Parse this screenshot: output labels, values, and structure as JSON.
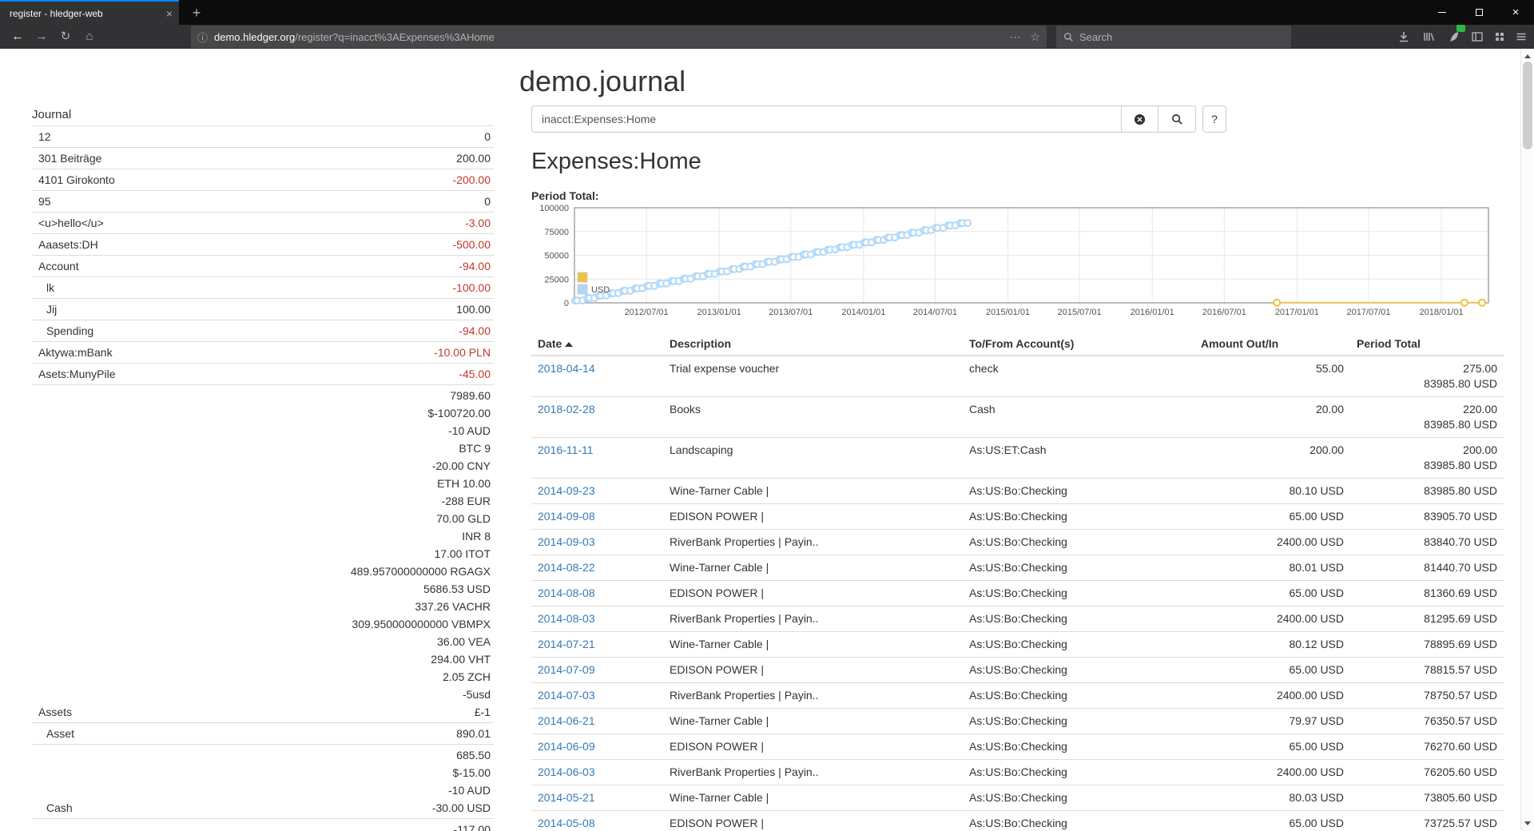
{
  "colors": {
    "negative": "#c0392b",
    "link": "#337ab7",
    "tab_accent": "#0a84ff",
    "chart_yellow": "#edc240",
    "chart_blue": "#afd8f8",
    "badge_green": "#2db845"
  },
  "browser": {
    "tab_title": "register - hledger-web",
    "url_host": "demo.hledger.org",
    "url_path": "/register?q=inacct%3AExpenses%3AHome",
    "search_placeholder": "Search"
  },
  "page": {
    "title": "demo.journal",
    "sidebar": {
      "heading": "Journal",
      "rows": [
        {
          "name": "12",
          "indent": 1,
          "red": false,
          "amounts": [
            "0"
          ]
        },
        {
          "name": "301 Beiträge",
          "indent": 1,
          "red": false,
          "amounts": [
            "200.00"
          ]
        },
        {
          "name": "4101 Girokonto",
          "indent": 1,
          "red": true,
          "amounts": [
            "-200.00"
          ]
        },
        {
          "name": "95",
          "indent": 1,
          "red": false,
          "amounts": [
            "0"
          ]
        },
        {
          "name": "<u>hello</u>",
          "indent": 1,
          "red": true,
          "amounts": [
            "-3.00"
          ]
        },
        {
          "name": "Aaasets:DH",
          "indent": 1,
          "red": true,
          "amounts": [
            "-500.00"
          ]
        },
        {
          "name": "Account",
          "indent": 1,
          "red": true,
          "amounts": [
            "-94.00"
          ]
        },
        {
          "name": "lk",
          "indent": 2,
          "red": true,
          "amounts": [
            "-100.00"
          ]
        },
        {
          "name": "Jij",
          "indent": 2,
          "red": false,
          "amounts": [
            "100.00"
          ]
        },
        {
          "name": "Spending",
          "indent": 2,
          "red": true,
          "amounts": [
            "-94.00"
          ]
        },
        {
          "name": "Aktywa:mBank",
          "indent": 1,
          "red": true,
          "amounts": [
            "-10.00 PLN"
          ]
        },
        {
          "name": "Asets:MunyPile",
          "indent": 1,
          "red": true,
          "amounts": [
            "-45.00"
          ]
        },
        {
          "name": "Assets",
          "indent": 1,
          "red": false,
          "amounts": [
            "7989.60",
            "$-100720.00",
            "-10 AUD",
            "BTC 9",
            "-20.00 CNY",
            "ETH 10.00",
            "-288 EUR",
            "70.00 GLD",
            "INR 8",
            "17.00 ITOT",
            "489.957000000000 RGAGX",
            "5686.53 USD",
            "337.26 VACHR",
            "309.950000000000 VBMPX",
            "36.00 VEA",
            "294.00 VHT",
            "2.05 ZCH",
            "-5usd",
            "£-1"
          ]
        },
        {
          "name": "Asset",
          "indent": 2,
          "red": false,
          "amounts": [
            "890.01"
          ]
        },
        {
          "name": "Cash",
          "indent": 2,
          "red": false,
          "amounts": [
            "685.50",
            "$-15.00",
            "-10 AUD",
            "-30.00 USD"
          ]
        },
        {
          "name": "",
          "indent": 2,
          "red": false,
          "amounts": [
            "-117.00"
          ]
        }
      ]
    },
    "search": {
      "query": "inacct:Expenses:Home",
      "help_label": "?"
    },
    "account_heading": "Expenses:Home",
    "period_total_label": "Period Total:",
    "register": {
      "columns": {
        "date": "Date",
        "description": "Description",
        "account": "To/From Account(s)",
        "amount": "Amount Out/In",
        "total": "Period Total"
      },
      "rows": [
        {
          "date": "2018-04-14",
          "description": "Trial expense voucher",
          "account": "check",
          "amount": "55.00",
          "totals": [
            "275.00",
            "83985.80 USD"
          ]
        },
        {
          "date": "2018-02-28",
          "description": "Books",
          "account": "Cash",
          "amount": "20.00",
          "totals": [
            "220.00",
            "83985.80 USD"
          ]
        },
        {
          "date": "2016-11-11",
          "description": "Landscaping",
          "account": "As:US:ET:Cash",
          "amount": "200.00",
          "totals": [
            "200.00",
            "83985.80 USD"
          ]
        },
        {
          "date": "2014-09-23",
          "description": "Wine-Tarner Cable |",
          "account": "As:US:Bo:Checking",
          "amount": "80.10 USD",
          "totals": [
            "83985.80 USD"
          ]
        },
        {
          "date": "2014-09-08",
          "description": "EDISON POWER |",
          "account": "As:US:Bo:Checking",
          "amount": "65.00 USD",
          "totals": [
            "83905.70 USD"
          ]
        },
        {
          "date": "2014-09-03",
          "description": "RiverBank Properties | Payin..",
          "account": "As:US:Bo:Checking",
          "amount": "2400.00 USD",
          "totals": [
            "83840.70 USD"
          ]
        },
        {
          "date": "2014-08-22",
          "description": "Wine-Tarner Cable |",
          "account": "As:US:Bo:Checking",
          "amount": "80.01 USD",
          "totals": [
            "81440.70 USD"
          ]
        },
        {
          "date": "2014-08-08",
          "description": "EDISON POWER |",
          "account": "As:US:Bo:Checking",
          "amount": "65.00 USD",
          "totals": [
            "81360.69 USD"
          ]
        },
        {
          "date": "2014-08-03",
          "description": "RiverBank Properties | Payin..",
          "account": "As:US:Bo:Checking",
          "amount": "2400.00 USD",
          "totals": [
            "81295.69 USD"
          ]
        },
        {
          "date": "2014-07-21",
          "description": "Wine-Tarner Cable |",
          "account": "As:US:Bo:Checking",
          "amount": "80.12 USD",
          "totals": [
            "78895.69 USD"
          ]
        },
        {
          "date": "2014-07-09",
          "description": "EDISON POWER |",
          "account": "As:US:Bo:Checking",
          "amount": "65.00 USD",
          "totals": [
            "78815.57 USD"
          ]
        },
        {
          "date": "2014-07-03",
          "description": "RiverBank Properties | Payin..",
          "account": "As:US:Bo:Checking",
          "amount": "2400.00 USD",
          "totals": [
            "78750.57 USD"
          ]
        },
        {
          "date": "2014-06-21",
          "description": "Wine-Tarner Cable |",
          "account": "As:US:Bo:Checking",
          "amount": "79.97 USD",
          "totals": [
            "76350.57 USD"
          ]
        },
        {
          "date": "2014-06-09",
          "description": "EDISON POWER |",
          "account": "As:US:Bo:Checking",
          "amount": "65.00 USD",
          "totals": [
            "76270.60 USD"
          ]
        },
        {
          "date": "2014-06-03",
          "description": "RiverBank Properties | Payin..",
          "account": "As:US:Bo:Checking",
          "amount": "2400.00 USD",
          "totals": [
            "76205.60 USD"
          ]
        },
        {
          "date": "2014-05-21",
          "description": "Wine-Tarner Cable |",
          "account": "As:US:Bo:Checking",
          "amount": "80.03 USD",
          "totals": [
            "73805.60 USD"
          ]
        },
        {
          "date": "2014-05-08",
          "description": "EDISON POWER |",
          "account": "As:US:Bo:Checking",
          "amount": "65.00 USD",
          "totals": [
            "73725.57 USD"
          ]
        }
      ]
    }
  },
  "chart_data": {
    "type": "line",
    "title": "Period Total:",
    "x_axis": "date (days since 2012-01-01)",
    "x_max_day": 2311,
    "y_max": 100000,
    "y_ticks": [
      0,
      25000,
      50000,
      75000,
      100000
    ],
    "x_ticks": [
      [
        182,
        "2012/07/01"
      ],
      [
        366,
        "2013/01/01"
      ],
      [
        547,
        "2013/07/01"
      ],
      [
        731,
        "2014/01/01"
      ],
      [
        912,
        "2014/07/01"
      ],
      [
        1096,
        "2015/01/01"
      ],
      [
        1277,
        "2015/07/01"
      ],
      [
        1461,
        "2016/01/01"
      ],
      [
        1643,
        "2016/07/01"
      ],
      [
        1827,
        "2017/01/01"
      ],
      [
        2008,
        "2017/07/01"
      ],
      [
        2192,
        "2018/01/01"
      ]
    ],
    "legend_position": "bottom-left",
    "grid": true,
    "series": [
      {
        "name": "",
        "color": "#edc240",
        "points": [
          [
            1776,
            200
          ],
          [
            2250,
            220
          ],
          [
            2295,
            275
          ]
        ]
      },
      {
        "name": "USD",
        "color": "#afd8f8",
        "points": [
          [
            2,
            2400
          ],
          [
            7,
            2465
          ],
          [
            20,
            2545
          ],
          [
            33,
            4945
          ],
          [
            38,
            5010
          ],
          [
            51,
            5090
          ],
          [
            62,
            7490
          ],
          [
            67,
            7555
          ],
          [
            80,
            7635
          ],
          [
            93,
            10035
          ],
          [
            98,
            10100
          ],
          [
            111,
            10180
          ],
          [
            123,
            12580
          ],
          [
            128,
            12645
          ],
          [
            141,
            12725
          ],
          [
            154,
            15125
          ],
          [
            159,
            15190
          ],
          [
            172,
            15270
          ],
          [
            184,
            17670
          ],
          [
            189,
            17735
          ],
          [
            202,
            17815
          ],
          [
            215,
            20215
          ],
          [
            220,
            20280
          ],
          [
            233,
            20360
          ],
          [
            246,
            22760
          ],
          [
            251,
            22825
          ],
          [
            264,
            22905
          ],
          [
            276,
            25305
          ],
          [
            281,
            25370
          ],
          [
            294,
            25450
          ],
          [
            307,
            27850
          ],
          [
            312,
            27915
          ],
          [
            325,
            27995
          ],
          [
            337,
            30395
          ],
          [
            342,
            30460
          ],
          [
            355,
            30540
          ],
          [
            368,
            32940
          ],
          [
            373,
            33005
          ],
          [
            386,
            33085
          ],
          [
            399,
            35485
          ],
          [
            404,
            35550
          ],
          [
            417,
            35630
          ],
          [
            427,
            38030
          ],
          [
            432,
            38095
          ],
          [
            445,
            38175
          ],
          [
            458,
            40575
          ],
          [
            463,
            40640
          ],
          [
            476,
            40720
          ],
          [
            488,
            43120
          ],
          [
            493,
            43185
          ],
          [
            506,
            43265
          ],
          [
            519,
            45665
          ],
          [
            524,
            45730
          ],
          [
            537,
            45810
          ],
          [
            549,
            48210
          ],
          [
            554,
            48275
          ],
          [
            567,
            48355
          ],
          [
            580,
            50755
          ],
          [
            585,
            50820
          ],
          [
            598,
            50900
          ],
          [
            611,
            53300
          ],
          [
            616,
            53365
          ],
          [
            629,
            53445
          ],
          [
            641,
            55845
          ],
          [
            646,
            55910
          ],
          [
            659,
            55990
          ],
          [
            672,
            58390
          ],
          [
            677,
            58455
          ],
          [
            690,
            58535
          ],
          [
            702,
            60935
          ],
          [
            707,
            61000
          ],
          [
            720,
            61080
          ],
          [
            733,
            63480
          ],
          [
            738,
            63545
          ],
          [
            751,
            63625
          ],
          [
            764,
            66025
          ],
          [
            769,
            66090
          ],
          [
            782,
            66170
          ],
          [
            792,
            68570
          ],
          [
            797,
            68635
          ],
          [
            810,
            68715
          ],
          [
            823,
            71115
          ],
          [
            828,
            71180
          ],
          [
            841,
            71260
          ],
          [
            853,
            73660
          ],
          [
            858,
            73725
          ],
          [
            871,
            73805
          ],
          [
            884,
            76205
          ],
          [
            889,
            76270
          ],
          [
            902,
            76350
          ],
          [
            914,
            78750
          ],
          [
            919,
            78815
          ],
          [
            932,
            78895
          ],
          [
            945,
            81295
          ],
          [
            950,
            81360
          ],
          [
            963,
            81440
          ],
          [
            976,
            83840
          ],
          [
            981,
            83905
          ],
          [
            994,
            83985
          ]
        ]
      }
    ]
  }
}
